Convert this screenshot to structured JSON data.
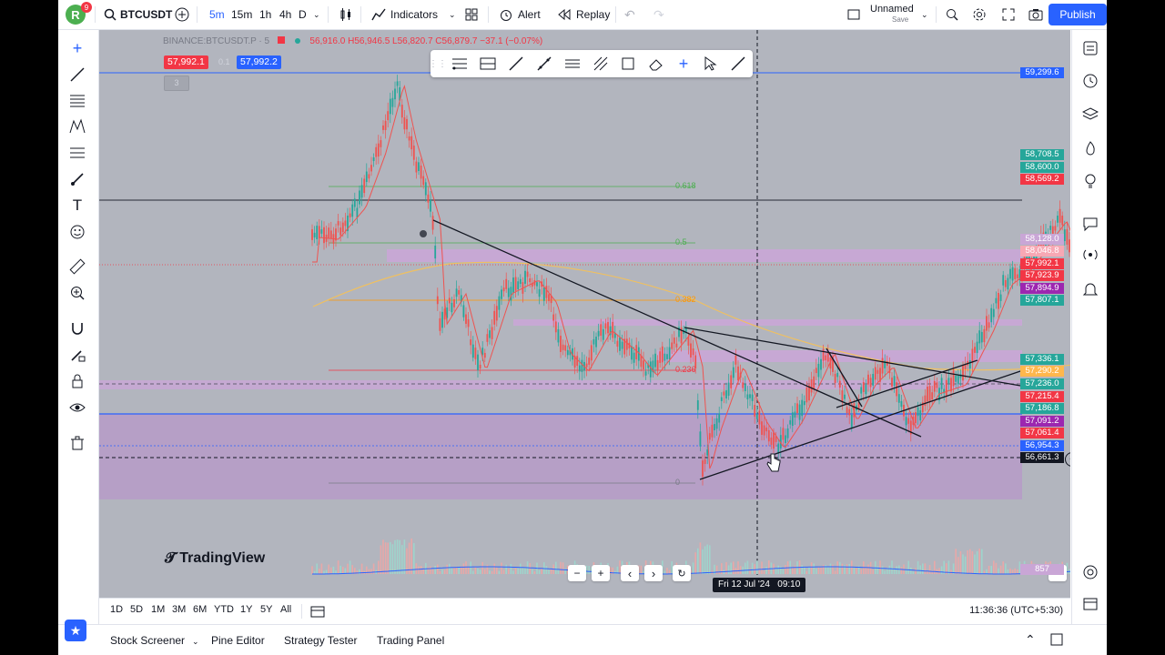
{
  "header": {
    "logo_letter": "R",
    "notif_count": "9",
    "symbol": "BTCUSDT",
    "timeframes": [
      "5m",
      "15m",
      "1h",
      "4h",
      "D"
    ],
    "indicators_label": "Indicators",
    "alert_label": "Alert",
    "replay_label": "Replay",
    "layout_name": "Unnamed",
    "layout_sub": "Save",
    "publish_label": "Publish"
  },
  "legend": {
    "title": "BINANCE:BTCUSDT.P · 5",
    "ohlc": "56,916.0  H56,946.5  L56,820.7  C56,879.7  −37.1 (−0.07%)",
    "bid": "57,992.1",
    "spread": "0.1",
    "ask": "57,992.2",
    "collapsed_count": "3"
  },
  "price_labels": [
    {
      "text": "59,299.6",
      "y": 80,
      "bg": "#2962ff"
    },
    {
      "text": "58,708.5",
      "y": 170,
      "bg": "#26a69a"
    },
    {
      "text": "58,600.0",
      "y": 184,
      "bg": "#26a69a"
    },
    {
      "text": "58,569.2",
      "y": 197,
      "bg": "#f23645"
    },
    {
      "text": "58,128.0",
      "y": 263,
      "bg": "#c9a6d6"
    },
    {
      "text": "58,046.8",
      "y": 276,
      "bg": "#f7a8b4"
    },
    {
      "text": "57,992.1",
      "y": 290,
      "bg": "#f23645"
    },
    {
      "text": "57,923.9",
      "y": 303,
      "bg": "#f23645"
    },
    {
      "text": "57,894.9",
      "y": 317,
      "bg": "#9c27b0"
    },
    {
      "text": "57,807.1",
      "y": 330,
      "bg": "#26a69a"
    },
    {
      "text": "57,336.1",
      "y": 395,
      "bg": "#26a69a"
    },
    {
      "text": "57,290.2",
      "y": 408,
      "bg": "#ffb74d"
    },
    {
      "text": "57,236.0",
      "y": 422,
      "bg": "#26a69a"
    },
    {
      "text": "57,215.4",
      "y": 436,
      "bg": "#f23645"
    },
    {
      "text": "57,186.8",
      "y": 449,
      "bg": "#26a69a"
    },
    {
      "text": "57,091.2",
      "y": 463,
      "bg": "#9c27b0"
    },
    {
      "text": "57,061.4",
      "y": 476,
      "bg": "#f23645"
    },
    {
      "text": "56,954.3",
      "y": 490,
      "bg": "#2962ff"
    },
    {
      "text": "56,661.3",
      "y": 503,
      "bg": "#131722"
    },
    {
      "text": "857",
      "y": 626,
      "bg": "#c9a6d6"
    }
  ],
  "fib_labels": [
    {
      "text": "0.618",
      "y": 205
    },
    {
      "text": "0.5",
      "y": 267
    },
    {
      "text": "0.382",
      "y": 330
    },
    {
      "text": "0.236",
      "y": 407
    },
    {
      "text": "0",
      "y": 531
    }
  ],
  "crosshair_time": "Fri 12 Jul '24   09:10",
  "watermark": "TradingView",
  "ranges": [
    "1D",
    "5D",
    "1M",
    "3M",
    "6M",
    "YTD",
    "1Y",
    "5Y",
    "All"
  ],
  "clock": "11:36:36 (UTC+5:30)",
  "footer_tabs": [
    "Stock Screener",
    "Pine Editor",
    "Strategy Tester",
    "Trading Panel"
  ]
}
